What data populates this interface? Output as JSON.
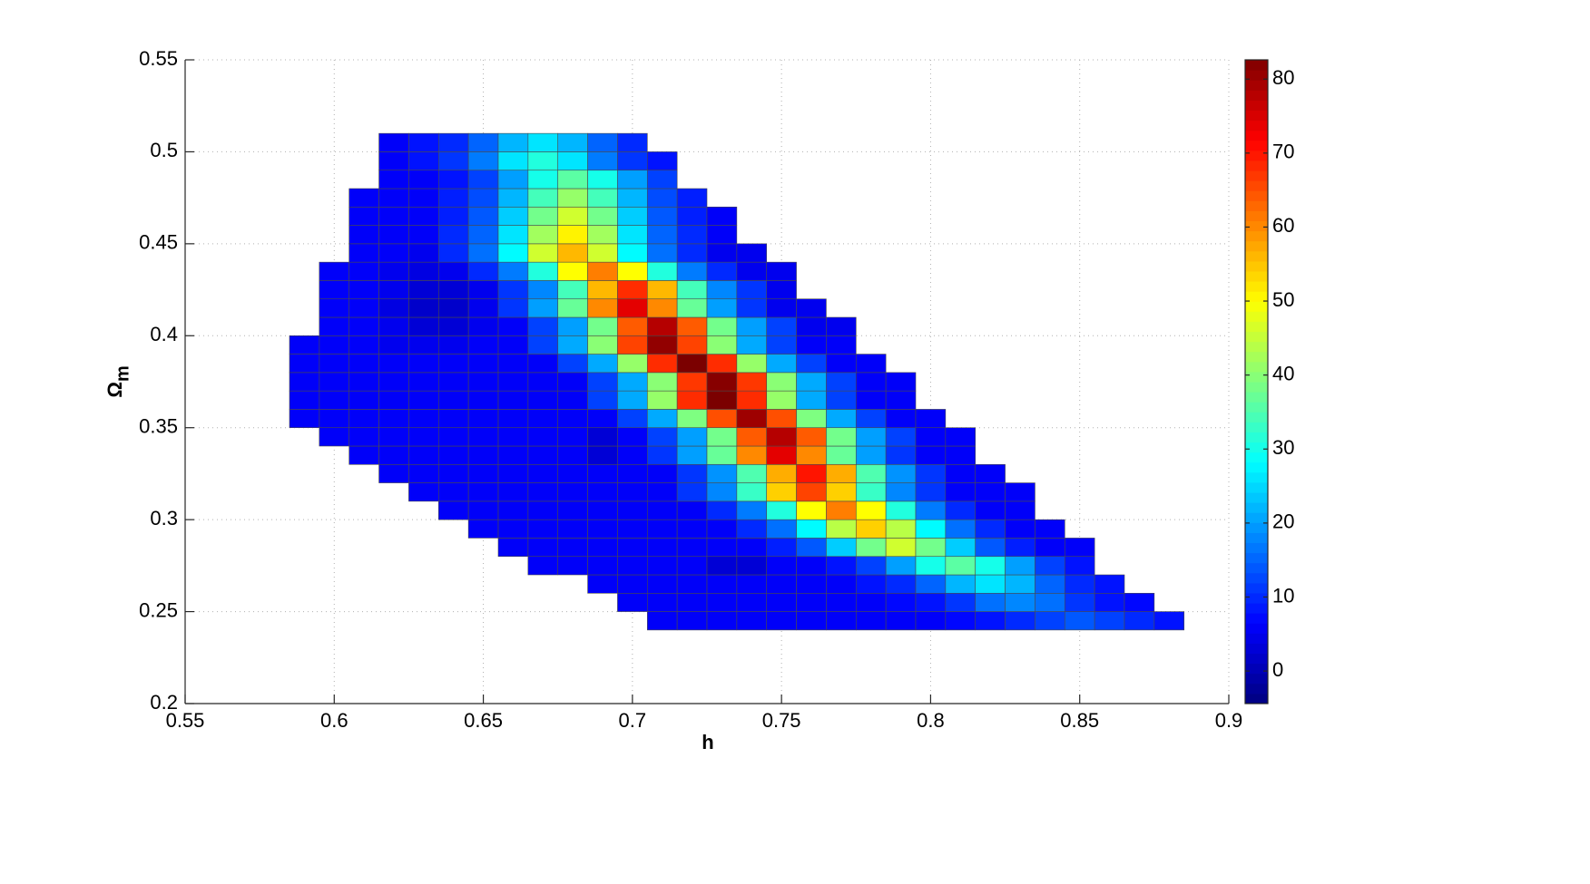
{
  "chart_data": {
    "type": "heatmap",
    "xlabel": "h",
    "ylabel": {
      "text": "Ω",
      "subscript": "m"
    },
    "xlim": [
      0.55,
      0.9
    ],
    "xticks": [
      0.55,
      0.6,
      0.65,
      0.7,
      0.75,
      0.8,
      0.85,
      0.9
    ],
    "ylim": [
      0.2,
      0.55
    ],
    "yticks": [
      0.2,
      0.25,
      0.3,
      0.35,
      0.4,
      0.45,
      0.5,
      0.55
    ],
    "grid": true,
    "colormap": "jet",
    "clim": [
      -4.4,
      82.6
    ],
    "cticks": [
      0,
      10,
      20,
      30,
      40,
      50,
      60,
      70,
      80
    ],
    "x": [
      0.59,
      0.6,
      0.61,
      0.62,
      0.63,
      0.64,
      0.65,
      0.66,
      0.67,
      0.68,
      0.69,
      0.7,
      0.71,
      0.72,
      0.73,
      0.74,
      0.75,
      0.76,
      0.77,
      0.78,
      0.79,
      0.8,
      0.81,
      0.82,
      0.83,
      0.84,
      0.85,
      0.86,
      0.87,
      0.88
    ],
    "y": [
      0.245,
      0.255,
      0.265,
      0.275,
      0.285,
      0.295,
      0.305,
      0.315,
      0.325,
      0.335,
      0.345,
      0.355,
      0.365,
      0.375,
      0.385,
      0.395,
      0.405,
      0.415,
      0.425,
      0.435,
      0.445,
      0.455,
      0.465,
      0.475,
      0.485,
      0.495,
      0.505
    ],
    "z": [
      [
        null,
        null,
        null,
        null,
        null,
        null,
        null,
        null,
        null,
        null,
        null,
        null,
        6,
        6,
        6,
        6,
        6,
        6,
        6,
        6,
        6,
        6,
        7,
        8,
        10,
        12,
        14,
        12,
        10,
        8
      ],
      [
        null,
        null,
        null,
        null,
        null,
        null,
        null,
        null,
        null,
        null,
        null,
        6,
        6,
        6,
        6,
        6,
        6,
        6,
        6,
        6,
        7,
        8,
        11,
        16,
        18,
        16,
        11,
        8,
        7,
        null
      ],
      [
        null,
        null,
        null,
        null,
        null,
        null,
        null,
        null,
        null,
        null,
        6,
        6,
        6,
        6,
        6,
        6,
        6,
        6,
        6,
        8,
        10,
        15,
        22,
        26,
        22,
        15,
        10,
        8,
        null,
        null
      ],
      [
        null,
        null,
        null,
        null,
        null,
        null,
        null,
        null,
        6,
        6,
        6,
        6,
        6,
        6,
        3,
        3,
        6,
        6,
        8,
        12,
        20,
        30,
        36,
        30,
        20,
        12,
        8,
        null,
        null,
        null
      ],
      [
        null,
        null,
        null,
        null,
        null,
        null,
        null,
        6,
        6,
        6,
        6,
        6,
        6,
        6,
        6,
        6,
        9,
        14,
        24,
        38,
        46,
        38,
        24,
        14,
        9,
        6,
        6,
        null,
        null,
        null
      ],
      [
        null,
        null,
        null,
        null,
        null,
        null,
        6,
        6,
        6,
        6,
        6,
        6,
        6,
        6,
        6,
        10,
        16,
        28,
        44,
        54,
        44,
        28,
        16,
        10,
        6,
        6,
        null,
        null,
        null,
        null
      ],
      [
        null,
        null,
        null,
        null,
        null,
        6,
        6,
        6,
        6,
        6,
        6,
        6,
        6,
        6,
        10,
        17,
        31,
        50,
        61,
        50,
        31,
        17,
        10,
        6,
        6,
        null,
        null,
        null,
        null,
        null
      ],
      [
        null,
        null,
        null,
        null,
        6,
        6,
        6,
        6,
        6,
        6,
        6,
        6,
        6,
        11,
        18,
        33,
        54,
        66,
        54,
        33,
        18,
        11,
        6,
        6,
        6,
        null,
        null,
        null,
        null,
        null
      ],
      [
        null,
        null,
        null,
        6,
        6,
        6,
        6,
        6,
        6,
        6,
        6,
        6,
        6,
        11,
        19,
        35,
        57,
        70,
        57,
        35,
        19,
        11,
        6,
        6,
        null,
        null,
        null,
        null,
        null,
        null
      ],
      [
        null,
        null,
        6,
        6,
        6,
        6,
        6,
        6,
        6,
        6,
        3,
        6,
        11,
        20,
        37,
        60,
        74,
        60,
        37,
        20,
        11,
        6,
        6,
        null,
        null,
        null,
        null,
        null,
        null,
        null
      ],
      [
        null,
        6,
        6,
        6,
        6,
        6,
        6,
        6,
        6,
        6,
        3,
        6,
        12,
        20,
        38,
        64,
        78,
        64,
        38,
        20,
        12,
        6,
        6,
        null,
        null,
        null,
        null,
        null,
        null,
        null
      ],
      [
        6,
        6,
        6,
        6,
        6,
        6,
        6,
        6,
        6,
        6,
        6,
        12,
        21,
        39,
        65,
        80,
        65,
        39,
        21,
        12,
        6,
        6,
        null,
        null,
        null,
        null,
        null,
        null,
        null,
        null
      ],
      [
        6,
        6,
        6,
        6,
        6,
        6,
        6,
        6,
        6,
        6,
        12,
        21,
        41,
        68,
        83,
        68,
        41,
        21,
        12,
        6,
        6,
        null,
        null,
        null,
        null,
        null,
        null,
        null,
        null,
        null
      ],
      [
        6,
        6,
        6,
        6,
        6,
        6,
        6,
        6,
        6,
        6,
        12,
        21,
        40,
        67,
        82,
        67,
        40,
        21,
        12,
        6,
        6,
        null,
        null,
        null,
        null,
        null,
        null,
        null,
        null,
        null
      ],
      [
        6,
        6,
        6,
        6,
        6,
        6,
        6,
        6,
        6,
        12,
        21,
        41,
        68,
        83,
        68,
        41,
        21,
        12,
        6,
        6,
        null,
        null,
        null,
        null,
        null,
        null,
        null,
        null,
        null,
        null
      ],
      [
        6,
        6,
        6,
        5,
        5,
        5,
        6,
        6,
        12,
        21,
        40,
        66,
        81,
        66,
        40,
        21,
        12,
        6,
        6,
        null,
        null,
        null,
        null,
        null,
        null,
        null,
        null,
        null,
        null,
        null
      ],
      [
        null,
        6,
        6,
        5,
        3,
        3,
        5,
        6,
        12,
        20,
        38,
        64,
        78,
        64,
        38,
        20,
        12,
        5,
        5,
        null,
        null,
        null,
        null,
        null,
        null,
        null,
        null,
        null,
        null,
        null
      ],
      [
        null,
        6,
        6,
        4,
        2,
        2,
        5,
        11,
        20,
        37,
        60,
        74,
        60,
        37,
        20,
        11,
        5,
        5,
        null,
        null,
        null,
        null,
        null,
        null,
        null,
        null,
        null,
        null,
        null,
        null
      ],
      [
        null,
        6,
        6,
        5,
        3,
        3,
        5,
        11,
        18,
        34,
        56,
        68,
        56,
        34,
        18,
        11,
        5,
        null,
        null,
        null,
        null,
        null,
        null,
        null,
        null,
        null,
        null,
        null,
        null,
        null
      ],
      [
        null,
        6,
        6,
        5,
        4,
        5,
        10,
        17,
        31,
        50,
        61,
        50,
        31,
        17,
        10,
        5,
        5,
        null,
        null,
        null,
        null,
        null,
        null,
        null,
        null,
        null,
        null,
        null,
        null,
        null
      ],
      [
        null,
        null,
        6,
        6,
        5,
        10,
        16,
        28,
        46,
        56,
        46,
        28,
        16,
        10,
        5,
        5,
        null,
        null,
        null,
        null,
        null,
        null,
        null,
        null,
        null,
        null,
        null,
        null,
        null,
        null
      ],
      [
        null,
        null,
        6,
        6,
        6,
        10,
        15,
        26,
        42,
        51,
        42,
        26,
        15,
        10,
        6,
        null,
        null,
        null,
        null,
        null,
        null,
        null,
        null,
        null,
        null,
        null,
        null,
        null,
        null,
        null
      ],
      [
        null,
        null,
        6,
        6,
        6,
        9,
        14,
        24,
        38,
        46,
        38,
        24,
        14,
        9,
        6,
        null,
        null,
        null,
        null,
        null,
        null,
        null,
        null,
        null,
        null,
        null,
        null,
        null,
        null,
        null
      ],
      [
        null,
        null,
        6,
        6,
        6,
        9,
        13,
        22,
        34,
        41,
        34,
        22,
        13,
        9,
        null,
        null,
        null,
        null,
        null,
        null,
        null,
        null,
        null,
        null,
        null,
        null,
        null,
        null,
        null,
        null
      ],
      [
        null,
        null,
        null,
        6,
        6,
        8,
        12,
        20,
        30,
        36,
        30,
        20,
        12,
        null,
        null,
        null,
        null,
        null,
        null,
        null,
        null,
        null,
        null,
        null,
        null,
        null,
        null,
        null,
        null,
        null
      ],
      [
        null,
        null,
        null,
        6,
        8,
        11,
        17,
        26,
        31,
        26,
        17,
        11,
        8,
        null,
        null,
        null,
        null,
        null,
        null,
        null,
        null,
        null,
        null,
        null,
        null,
        null,
        null,
        null,
        null,
        null
      ],
      [
        null,
        null,
        null,
        6,
        8,
        10,
        15,
        22,
        26,
        22,
        15,
        10,
        null,
        null,
        null,
        null,
        null,
        null,
        null,
        null,
        null,
        null,
        null,
        null,
        null,
        null,
        null,
        null,
        null,
        null
      ]
    ]
  }
}
